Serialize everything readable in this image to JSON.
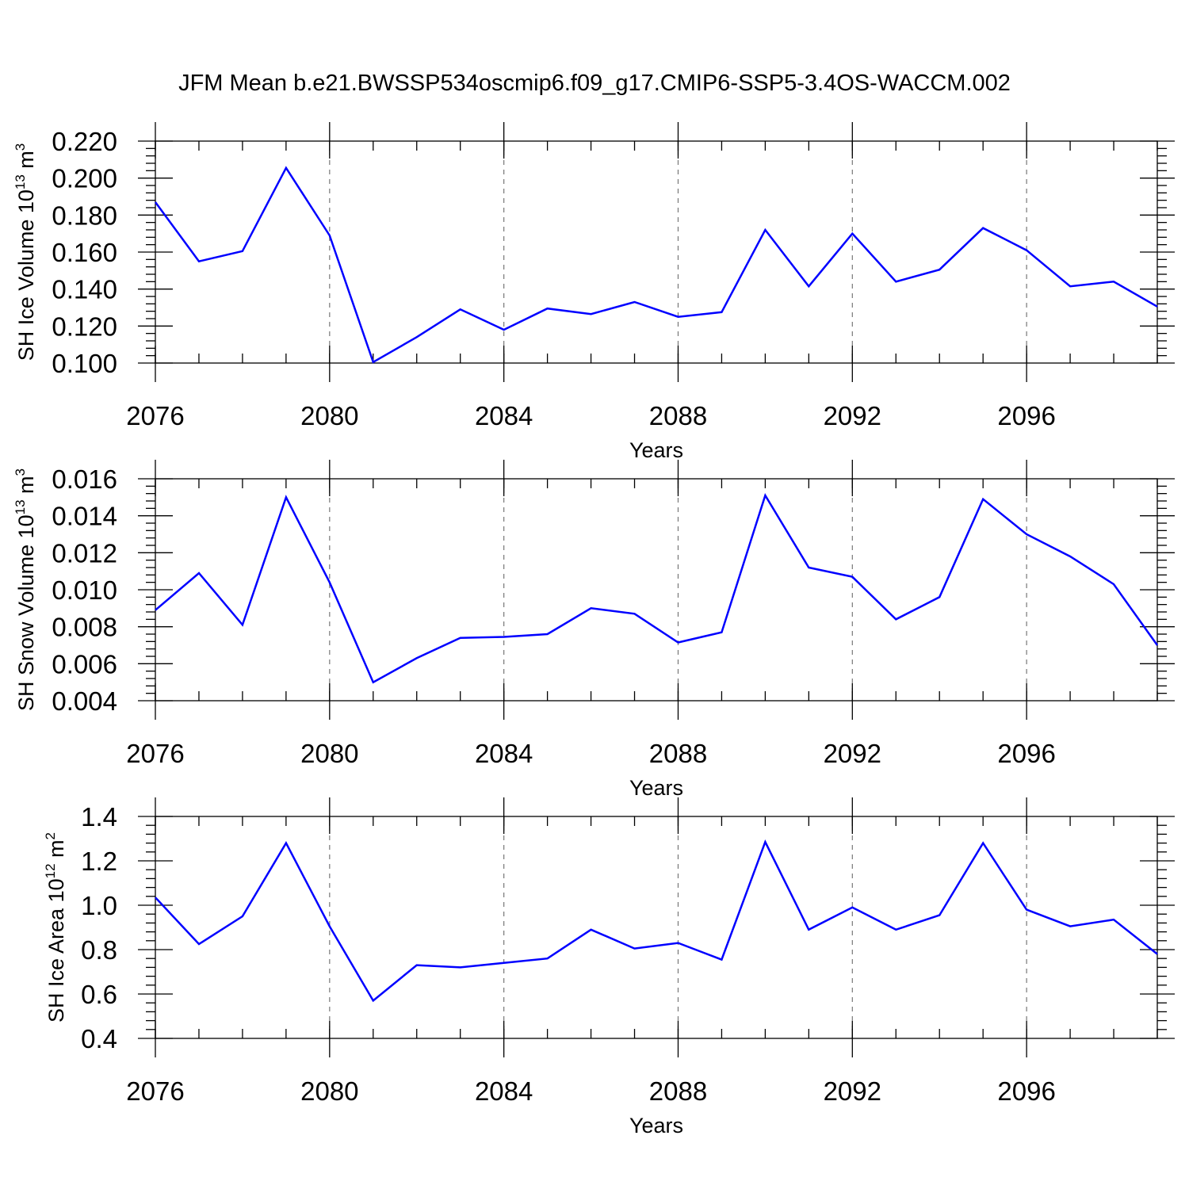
{
  "title": "JFM Mean b.e21.BWSSP534oscmip6.f09_g17.CMIP6-SSP5-3.4OS-WACCM.002",
  "colors": {
    "line": "#0000ff",
    "grid": "#777777",
    "axis": "#000000"
  },
  "chart_data": [
    {
      "type": "line",
      "ylabel": {
        "base": "SH Ice Volume 10",
        "exp": "13",
        "mid": " m",
        "unit_exp": "3"
      },
      "xlabel": "Years",
      "xlim": [
        2076,
        2099
      ],
      "ylim": [
        0.1,
        0.22
      ],
      "xticks": [
        "2076",
        "2080",
        "2084",
        "2088",
        "2092",
        "2096"
      ],
      "yticks": [
        "0.100",
        "0.120",
        "0.140",
        "0.160",
        "0.180",
        "0.200",
        "0.220"
      ],
      "series": [
        {
          "name": "SH Ice Volume",
          "x": [
            2076,
            2077,
            2078,
            2079,
            2080,
            2081,
            2082,
            2083,
            2084,
            2085,
            2086,
            2087,
            2088,
            2089,
            2090,
            2091,
            2092,
            2093,
            2094,
            2095,
            2096,
            2097,
            2098,
            2099
          ],
          "values": [
            0.187,
            0.155,
            0.1605,
            0.2055,
            0.169,
            0.1005,
            0.114,
            0.129,
            0.118,
            0.1295,
            0.1265,
            0.133,
            0.125,
            0.1275,
            0.172,
            0.1415,
            0.17,
            0.144,
            0.1505,
            0.173,
            0.161,
            0.1415,
            0.144,
            0.1305
          ]
        }
      ]
    },
    {
      "type": "line",
      "ylabel": {
        "base": "SH Snow Volume 10",
        "exp": "13",
        "mid": " m",
        "unit_exp": "3"
      },
      "xlabel": "Years",
      "xlim": [
        2076,
        2099
      ],
      "ylim": [
        0.004,
        0.016
      ],
      "xticks": [
        "2076",
        "2080",
        "2084",
        "2088",
        "2092",
        "2096"
      ],
      "yticks": [
        "0.004",
        "0.006",
        "0.008",
        "0.010",
        "0.012",
        "0.014",
        "0.016"
      ],
      "series": [
        {
          "name": "SH Snow Volume",
          "x": [
            2076,
            2077,
            2078,
            2079,
            2080,
            2081,
            2082,
            2083,
            2084,
            2085,
            2086,
            2087,
            2088,
            2089,
            2090,
            2091,
            2092,
            2093,
            2094,
            2095,
            2096,
            2097,
            2098,
            2099
          ],
          "values": [
            0.0089,
            0.0109,
            0.0081,
            0.015,
            0.0104,
            0.005,
            0.0063,
            0.0074,
            0.00745,
            0.0076,
            0.009,
            0.0087,
            0.00715,
            0.0077,
            0.0151,
            0.0112,
            0.0107,
            0.0084,
            0.0096,
            0.0149,
            0.013,
            0.0118,
            0.0103,
            0.007
          ]
        }
      ]
    },
    {
      "type": "line",
      "ylabel": {
        "base": "SH Ice Area 10",
        "exp": "12",
        "mid": " m",
        "unit_exp": "2"
      },
      "xlabel": "Years",
      "xlim": [
        2076,
        2099
      ],
      "ylim": [
        0.4,
        1.4
      ],
      "xticks": [
        "2076",
        "2080",
        "2084",
        "2088",
        "2092",
        "2096"
      ],
      "yticks": [
        "0.4",
        "0.6",
        "0.8",
        "1.0",
        "1.2",
        "1.4"
      ],
      "series": [
        {
          "name": "SH Ice Area",
          "x": [
            2076,
            2077,
            2078,
            2079,
            2080,
            2081,
            2082,
            2083,
            2084,
            2085,
            2086,
            2087,
            2088,
            2089,
            2090,
            2091,
            2092,
            2093,
            2094,
            2095,
            2096,
            2097,
            2098,
            2099
          ],
          "values": [
            1.035,
            0.825,
            0.95,
            1.28,
            0.905,
            0.57,
            0.73,
            0.72,
            0.74,
            0.76,
            0.89,
            0.805,
            0.83,
            0.755,
            1.285,
            0.89,
            0.99,
            0.89,
            0.955,
            1.28,
            0.98,
            0.905,
            0.935,
            0.78
          ]
        }
      ]
    }
  ]
}
